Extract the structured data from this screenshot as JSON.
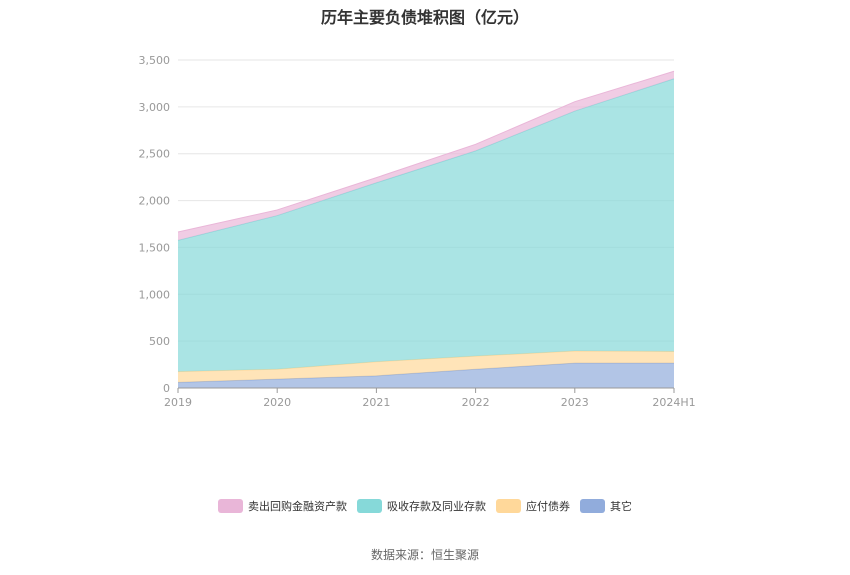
{
  "chart_data": {
    "type": "area",
    "stacked": true,
    "title": "历年主要负债堆积图（亿元）",
    "x": [
      "2019",
      "2020",
      "2021",
      "2022",
      "2023",
      "2024H1"
    ],
    "ylim": [
      0,
      3500
    ],
    "yticks": [
      {
        "value": 0,
        "label": "0"
      },
      {
        "value": 500,
        "label": "500"
      },
      {
        "value": 1000,
        "label": "1,000"
      },
      {
        "value": 1500,
        "label": "1,500"
      },
      {
        "value": 2000,
        "label": "2,000"
      },
      {
        "value": 2500,
        "label": "2,500"
      },
      {
        "value": 3000,
        "label": "3,000"
      },
      {
        "value": 3500,
        "label": "3,500"
      }
    ],
    "grid": true,
    "legend_position": "bottom",
    "series": [
      {
        "name": "其它",
        "color": "#91acdc",
        "values": [
          60,
          95,
          130,
          200,
          265,
          265
        ]
      },
      {
        "name": "应付债券",
        "color": "#ffd89a",
        "values": [
          115,
          105,
          150,
          140,
          130,
          125
        ]
      },
      {
        "name": "吸收存款及同业存款",
        "color": "#86d9d9",
        "values": [
          1400,
          1640,
          1910,
          2190,
          2560,
          2910
        ]
      },
      {
        "name": "卖出回购金融资产款",
        "color": "#e9b6d8",
        "values": [
          90,
          60,
          55,
          70,
          100,
          80
        ]
      }
    ],
    "legend_order": [
      "卖出回购金融资产款",
      "吸收存款及同业存款",
      "应付债券",
      "其它"
    ]
  },
  "source": "数据来源：恒生聚源"
}
